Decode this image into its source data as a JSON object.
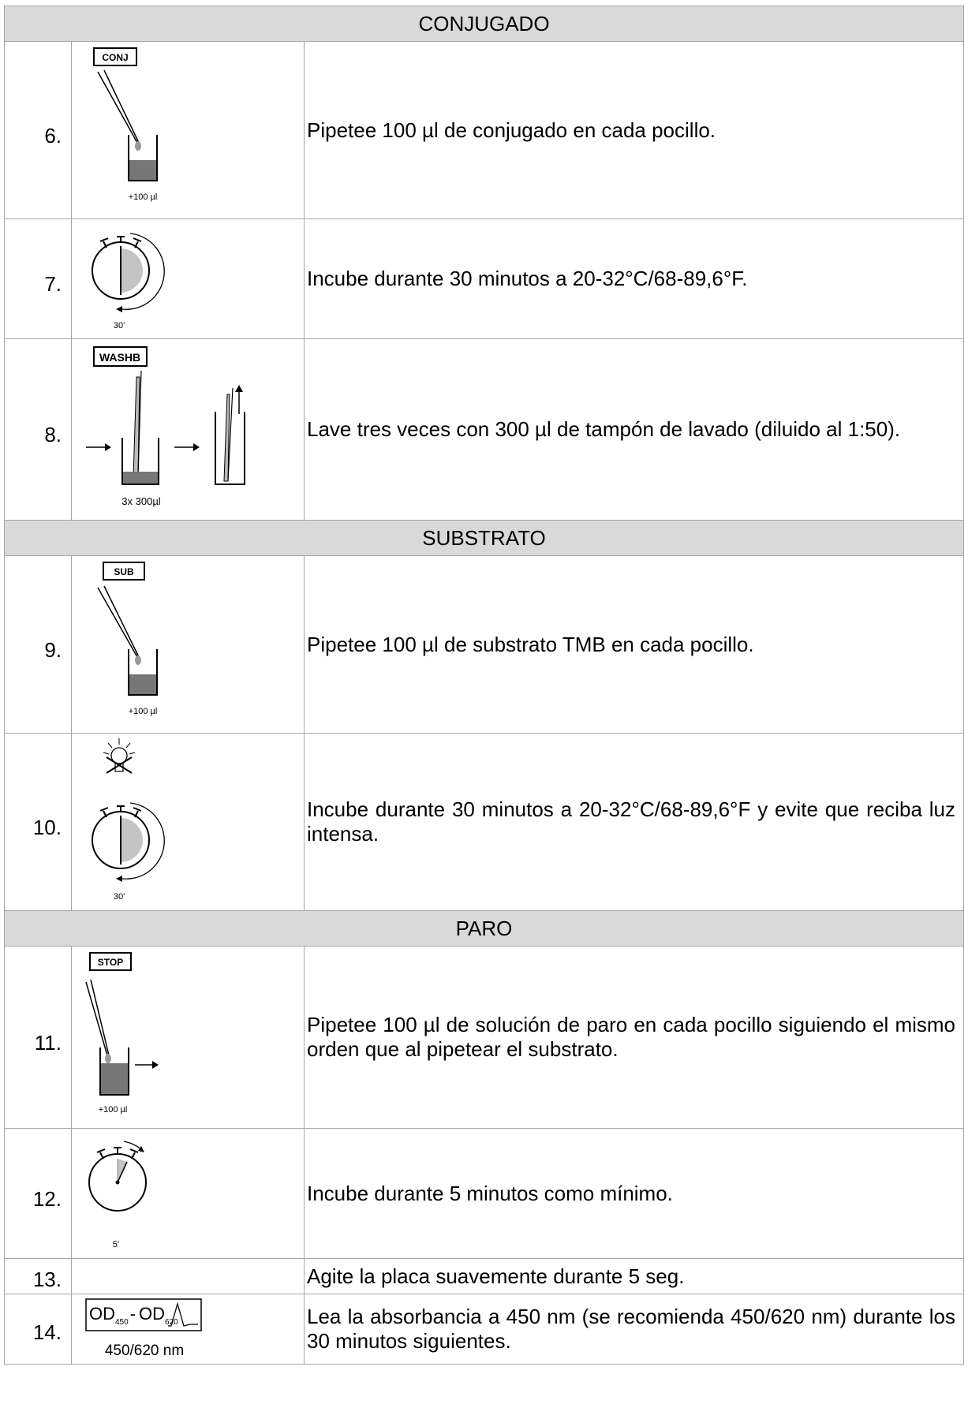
{
  "sections": {
    "conjugado": "CONJUGADO",
    "substrato": "SUBSTRATO",
    "paro": "PARO"
  },
  "steps": [
    {
      "num": "6.",
      "tag": "CONJ",
      "caption": "+100 µl",
      "text": "Pipetee 100 µl de conjugado en cada pocillo."
    },
    {
      "num": "7.",
      "caption": "30'",
      "text": "Incube durante 30 minutos a 20-32°C/68-89,6°F."
    },
    {
      "num": "8.",
      "tag": "WASHB",
      "caption": "3x 300µl",
      "text": "Lave tres veces con 300 µl de tampón de lavado (diluido al 1:50)."
    },
    {
      "num": "9.",
      "tag": "SUB",
      "caption": "+100 µl",
      "text": "Pipetee 100 µl de substrato TMB en cada pocillo."
    },
    {
      "num": "10.",
      "caption": "30'",
      "text": "Incube durante 30 minutos a 20-32°C/68-89,6°F y evite que reciba luz intensa."
    },
    {
      "num": "11.",
      "tag": "STOP",
      "caption": "+100 µl",
      "text": "Pipetee 100 µl de solución de paro en cada pocillo siguiendo el mismo orden que al pipetear el substrato."
    },
    {
      "num": "12.",
      "caption": "5'",
      "text": "Incube durante 5 minutos como mínimo."
    },
    {
      "num": "13.",
      "text": "Agite la placa suavemente durante 5 seg."
    },
    {
      "num": "14.",
      "od_left": "OD",
      "od_left_sub": "450",
      "od_dash": "-",
      "od_right": "OD",
      "od_right_sub": "620",
      "caption": "450/620 nm",
      "text": "Lea la absorbancia a 450 nm (se recomienda 450/620 nm) durante los 30 minutos siguientes."
    }
  ]
}
